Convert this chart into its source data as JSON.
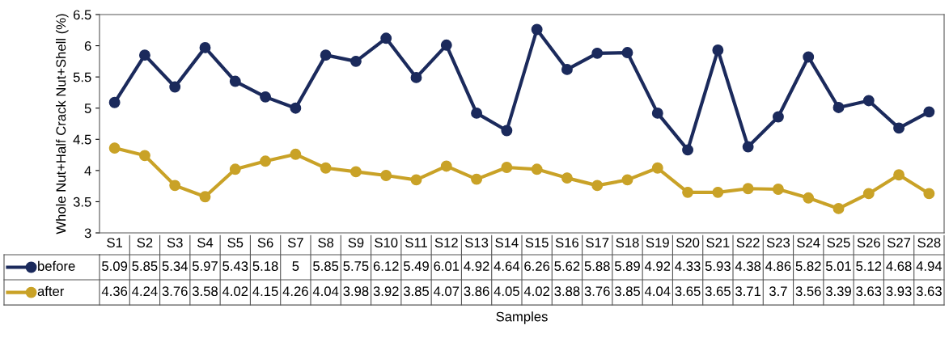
{
  "chart_data": {
    "type": "line",
    "ylabel": "Whole Nut+Half Crack Nut+Shell (%)",
    "xlabel": "Samples",
    "categories": [
      "S1",
      "S2",
      "S3",
      "S4",
      "S5",
      "S6",
      "S7",
      "S8",
      "S9",
      "S10",
      "S11",
      "S12",
      "S13",
      "S14",
      "S15",
      "S16",
      "S17",
      "S18",
      "S19",
      "S20",
      "S21",
      "S22",
      "S23",
      "S24",
      "S25",
      "S26",
      "S27",
      "S28"
    ],
    "series": [
      {
        "name": "before",
        "color": "#1b2a5c",
        "values": [
          5.09,
          5.85,
          5.34,
          5.97,
          5.43,
          5.18,
          5,
          5.85,
          5.75,
          6.12,
          5.49,
          6.01,
          4.92,
          4.64,
          6.26,
          5.62,
          5.88,
          5.89,
          4.92,
          4.33,
          5.93,
          4.38,
          4.86,
          5.82,
          5.01,
          5.12,
          4.68,
          4.94
        ]
      },
      {
        "name": "after",
        "color": "#c9a227",
        "values": [
          4.36,
          4.24,
          3.76,
          3.58,
          4.02,
          4.15,
          4.26,
          4.04,
          3.98,
          3.92,
          3.85,
          4.07,
          3.86,
          4.05,
          4.02,
          3.88,
          3.76,
          3.85,
          4.04,
          3.65,
          3.65,
          3.71,
          3.7,
          3.56,
          3.39,
          3.63,
          3.93,
          3.63
        ]
      }
    ],
    "ylim": [
      3,
      6.5
    ],
    "yticks": [
      3,
      3.5,
      4,
      4.5,
      5,
      5.5,
      6,
      6.5
    ],
    "grid": false,
    "marker": "circle",
    "line_style": "solid",
    "data_labels": true,
    "legend": "bottom"
  }
}
